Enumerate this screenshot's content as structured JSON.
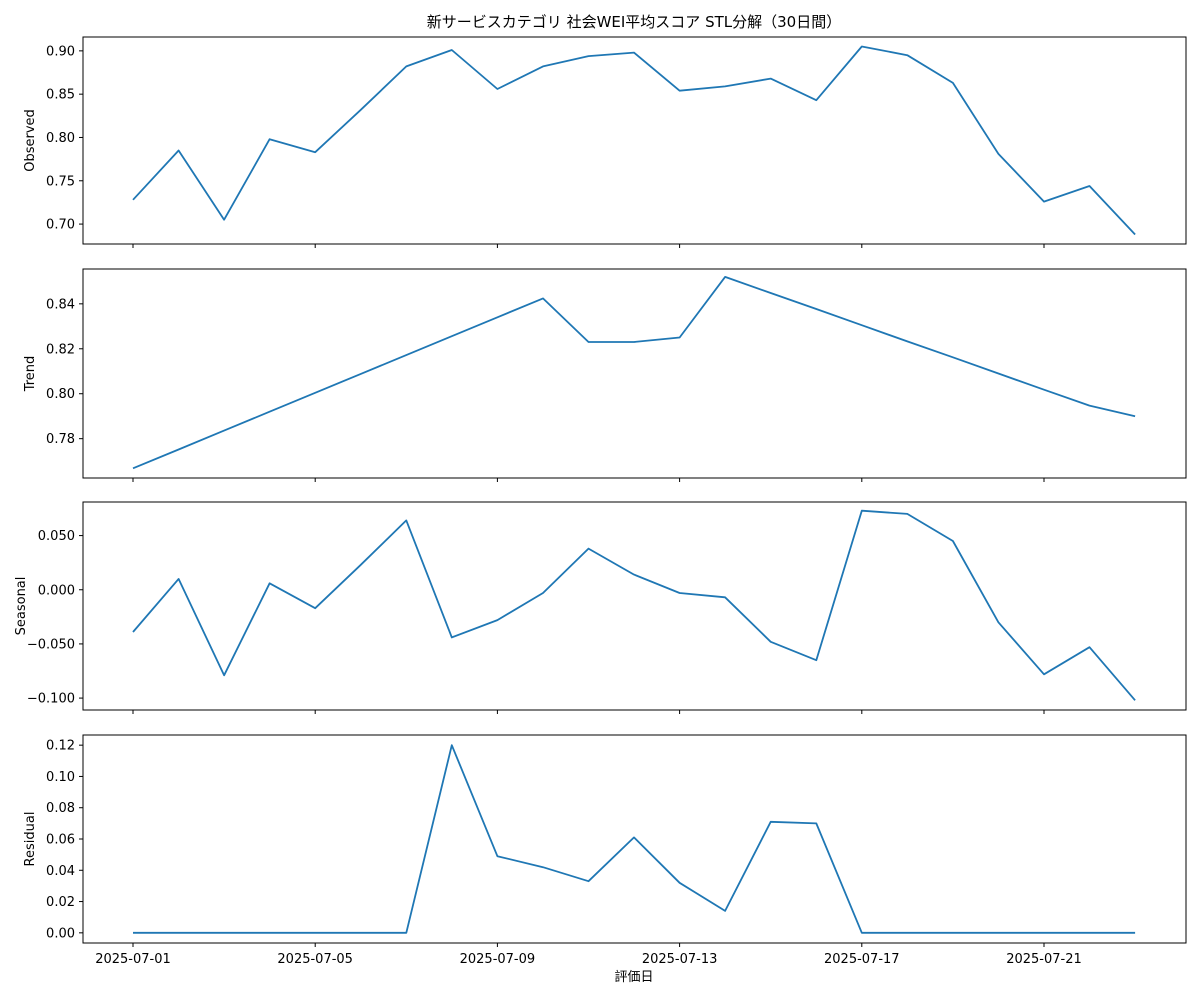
{
  "chart_data": {
    "type": "line",
    "title": "新サービスカテゴリ 社会WEI平均スコア STL分解（30日間）",
    "xlabel": "評価日",
    "x": [
      "2025-07-01",
      "2025-07-02",
      "2025-07-03",
      "2025-07-04",
      "2025-07-05",
      "2025-07-06",
      "2025-07-07",
      "2025-07-08",
      "2025-07-09",
      "2025-07-10",
      "2025-07-11",
      "2025-07-12",
      "2025-07-13",
      "2025-07-14",
      "2025-07-15",
      "2025-07-16",
      "2025-07-17",
      "2025-07-18",
      "2025-07-19",
      "2025-07-20",
      "2025-07-21",
      "2025-07-22",
      "2025-07-23"
    ],
    "xticks": [
      "2025-07-01",
      "2025-07-05",
      "2025-07-09",
      "2025-07-13",
      "2025-07-17",
      "2025-07-21"
    ],
    "line_color": "#1f77b4",
    "panels": [
      {
        "name": "Observed",
        "ylabel": "Observed",
        "ylim": [
          0.677,
          0.916
        ],
        "yticks": [
          "0.70",
          "0.75",
          "0.80",
          "0.85",
          "0.90"
        ],
        "values": [
          0.728,
          0.785,
          0.705,
          0.798,
          0.783,
          0.832,
          0.882,
          0.901,
          0.856,
          0.882,
          0.894,
          0.898,
          0.854,
          0.859,
          0.868,
          0.843,
          0.905,
          0.895,
          0.863,
          0.781,
          0.726,
          0.744,
          0.688
        ]
      },
      {
        "name": "Trend",
        "ylabel": "Trend",
        "ylim": [
          0.7625,
          0.8555
        ],
        "yticks": [
          "0.78",
          "0.80",
          "0.82",
          "0.84"
        ],
        "values": [
          0.7668,
          0.7752,
          0.7836,
          0.792,
          0.8004,
          0.8088,
          0.8172,
          0.8256,
          0.834,
          0.8424,
          0.823,
          0.823,
          0.825,
          0.852,
          0.8448,
          0.8377,
          0.8305,
          0.8233,
          0.8162,
          0.809,
          0.8018,
          0.7947,
          0.79
        ]
      },
      {
        "name": "Seasonal",
        "ylabel": "Seasonal",
        "ylim": [
          -0.111,
          0.081
        ],
        "yticks": [
          "−0.100",
          "−0.050",
          "0.000",
          "0.050"
        ],
        "values": [
          -0.039,
          0.01,
          -0.079,
          0.006,
          -0.017,
          0.023,
          0.064,
          -0.044,
          -0.028,
          -0.003,
          0.038,
          0.014,
          -0.003,
          -0.007,
          -0.048,
          -0.065,
          0.073,
          0.07,
          0.045,
          -0.03,
          -0.078,
          -0.053,
          -0.102
        ]
      },
      {
        "name": "Residual",
        "ylabel": "Residual",
        "ylim": [
          -0.0065,
          0.1265
        ],
        "yticks": [
          "0.00",
          "0.02",
          "0.04",
          "0.06",
          "0.08",
          "0.10",
          "0.12"
        ],
        "values": [
          0,
          0,
          0,
          0,
          0,
          0,
          0,
          0.12,
          0.049,
          0.042,
          0.033,
          0.061,
          0.032,
          0.014,
          0.071,
          0.07,
          0,
          0,
          0,
          0,
          0,
          0,
          0
        ]
      }
    ]
  }
}
